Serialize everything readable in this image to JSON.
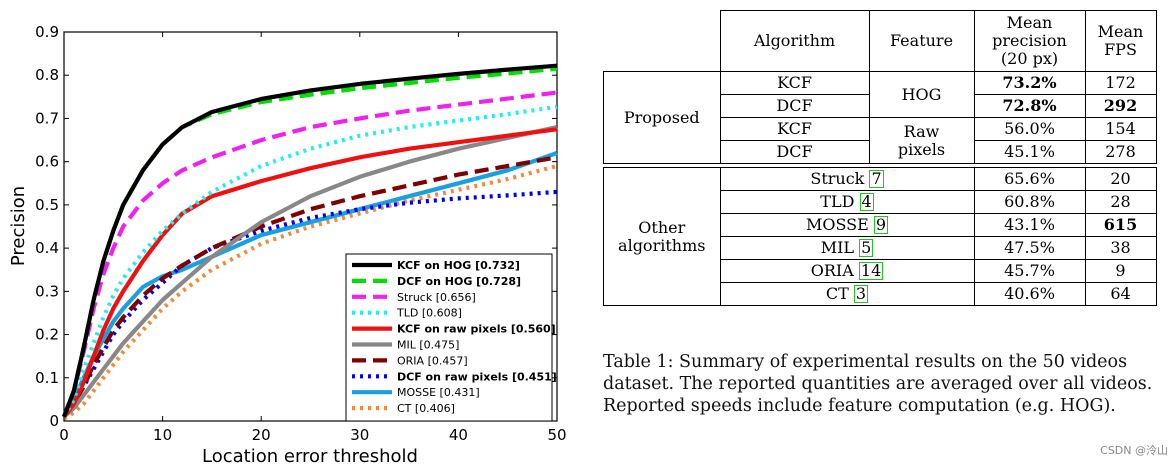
{
  "chart_data": {
    "type": "line",
    "xlabel": "Location error threshold",
    "ylabel": "Precision",
    "xlim": [
      0,
      50
    ],
    "ylim": [
      0,
      0.9
    ],
    "xticks": [
      "0",
      "10",
      "20",
      "30",
      "40",
      "50"
    ],
    "yticks": [
      "0",
      "0.1",
      "0.2",
      "0.3",
      "0.4",
      "0.5",
      "0.6",
      "0.7",
      "0.8",
      "0.9"
    ],
    "grid": false,
    "legend_position": "bottom-right",
    "x": [
      0,
      1,
      2,
      3,
      4,
      5,
      6,
      8,
      10,
      12,
      15,
      20,
      25,
      30,
      35,
      40,
      45,
      50
    ],
    "series": [
      {
        "name": "KCF on HOG [0.732]",
        "bold": true,
        "color": "#000000",
        "dash": "",
        "width": 4.2,
        "values": [
          0.01,
          0.07,
          0.17,
          0.28,
          0.37,
          0.44,
          0.5,
          0.58,
          0.64,
          0.68,
          0.715,
          0.745,
          0.765,
          0.78,
          0.792,
          0.803,
          0.813,
          0.822
        ]
      },
      {
        "name": "DCF on HOG [0.728]",
        "bold": true,
        "color": "#00dd00",
        "dash": "14,7",
        "width": 4.2,
        "values": [
          0.01,
          0.07,
          0.17,
          0.28,
          0.37,
          0.44,
          0.5,
          0.58,
          0.64,
          0.68,
          0.71,
          0.738,
          0.755,
          0.77,
          0.782,
          0.794,
          0.804,
          0.815
        ]
      },
      {
        "name": "Struck [0.656]",
        "bold": false,
        "color": "#ee22ee",
        "dash": "14,7",
        "width": 4.2,
        "values": [
          0.01,
          0.07,
          0.16,
          0.26,
          0.34,
          0.4,
          0.45,
          0.51,
          0.55,
          0.58,
          0.61,
          0.65,
          0.68,
          0.7,
          0.718,
          0.732,
          0.746,
          0.76
        ]
      },
      {
        "name": "TLD [0.608]",
        "bold": false,
        "color": "#22eeee",
        "dash": "3,5",
        "width": 4.2,
        "values": [
          0.01,
          0.05,
          0.12,
          0.18,
          0.24,
          0.29,
          0.33,
          0.39,
          0.44,
          0.48,
          0.53,
          0.59,
          0.63,
          0.66,
          0.68,
          0.695,
          0.71,
          0.727
        ]
      },
      {
        "name": "KCF on raw pixels [0.560]",
        "bold": true,
        "color": "#ee1111",
        "dash": "",
        "width": 4.2,
        "values": [
          0.01,
          0.04,
          0.09,
          0.15,
          0.21,
          0.26,
          0.3,
          0.37,
          0.43,
          0.48,
          0.52,
          0.555,
          0.585,
          0.61,
          0.63,
          0.645,
          0.66,
          0.675
        ]
      },
      {
        "name": "MIL [0.475]",
        "bold": false,
        "color": "#888888",
        "dash": "",
        "width": 4.2,
        "values": [
          0.01,
          0.03,
          0.06,
          0.09,
          0.12,
          0.15,
          0.18,
          0.23,
          0.28,
          0.32,
          0.38,
          0.46,
          0.52,
          0.565,
          0.6,
          0.63,
          0.655,
          0.68
        ]
      },
      {
        "name": "ORIA [0.457]",
        "bold": false,
        "color": "#7f0000",
        "dash": "14,7",
        "width": 4.2,
        "values": [
          0.01,
          0.04,
          0.08,
          0.13,
          0.17,
          0.21,
          0.24,
          0.29,
          0.33,
          0.36,
          0.4,
          0.45,
          0.49,
          0.52,
          0.545,
          0.57,
          0.59,
          0.61
        ]
      },
      {
        "name": "DCF on raw pixels [0.451]",
        "bold": true,
        "color": "#0000ee",
        "dash": "3,5",
        "width": 4.2,
        "values": [
          0.01,
          0.04,
          0.08,
          0.12,
          0.16,
          0.2,
          0.23,
          0.28,
          0.32,
          0.36,
          0.4,
          0.44,
          0.47,
          0.49,
          0.505,
          0.515,
          0.522,
          0.53
        ]
      },
      {
        "name": "MOSSE [0.431]",
        "bold": false,
        "color": "#1aa0e0",
        "dash": "",
        "width": 4.2,
        "values": [
          0.01,
          0.05,
          0.1,
          0.15,
          0.19,
          0.23,
          0.26,
          0.31,
          0.335,
          0.35,
          0.38,
          0.43,
          0.46,
          0.49,
          0.52,
          0.55,
          0.58,
          0.62
        ]
      },
      {
        "name": "CT [0.406]",
        "bold": false,
        "color": "#f28a3a",
        "dash": "3,5",
        "width": 4.2,
        "values": [
          0.005,
          0.02,
          0.04,
          0.07,
          0.1,
          0.13,
          0.16,
          0.21,
          0.26,
          0.3,
          0.35,
          0.41,
          0.45,
          0.48,
          0.51,
          0.535,
          0.56,
          0.59
        ]
      }
    ]
  },
  "table": {
    "headers": [
      "Algorithm",
      "Feature",
      "Mean precision (20 px)",
      "Mean FPS"
    ],
    "header_lines": {
      "algorithm": "Algorithm",
      "feature": "Feature",
      "precision_1": "Mean",
      "precision_2": "precision",
      "precision_3": "(20 px)",
      "fps_1": "Mean",
      "fps_2": "FPS"
    },
    "proposed_label": "Proposed",
    "feature_hog": "HOG",
    "feature_raw_1": "Raw",
    "feature_raw_2": "pixels",
    "proposed_rows": [
      {
        "algorithm": "KCF",
        "precision": "73.2%",
        "fps": "172"
      },
      {
        "algorithm": "DCF",
        "precision": "72.8%",
        "fps": "292"
      },
      {
        "algorithm": "KCF",
        "precision": "56.0%",
        "fps": "154"
      },
      {
        "algorithm": "DCF",
        "precision": "45.1%",
        "fps": "278"
      }
    ],
    "other_label_1": "Other",
    "other_label_2": "algorithms",
    "other_rows": [
      {
        "algorithm": "Struck",
        "ref": "7",
        "precision": "65.6%",
        "fps": "20"
      },
      {
        "algorithm": "TLD",
        "ref": "4",
        "precision": "60.8%",
        "fps": "28"
      },
      {
        "algorithm": "MOSSE",
        "ref": "9",
        "precision": "43.1%",
        "fps": "615"
      },
      {
        "algorithm": "MIL",
        "ref": "5",
        "precision": "47.5%",
        "fps": "38"
      },
      {
        "algorithm": "ORIA",
        "ref": "14",
        "precision": "45.7%",
        "fps": "9"
      },
      {
        "algorithm": "CT",
        "ref": "3",
        "precision": "40.6%",
        "fps": "64"
      }
    ]
  },
  "caption": {
    "line1": "Table 1: Summary of experimental results on the 50 videos",
    "line2": "dataset. The reported quantities are averaged over all videos.",
    "line3": "Reported speeds include feature computation (e.g. HOG)."
  },
  "watermark": "CSDN @泠山"
}
